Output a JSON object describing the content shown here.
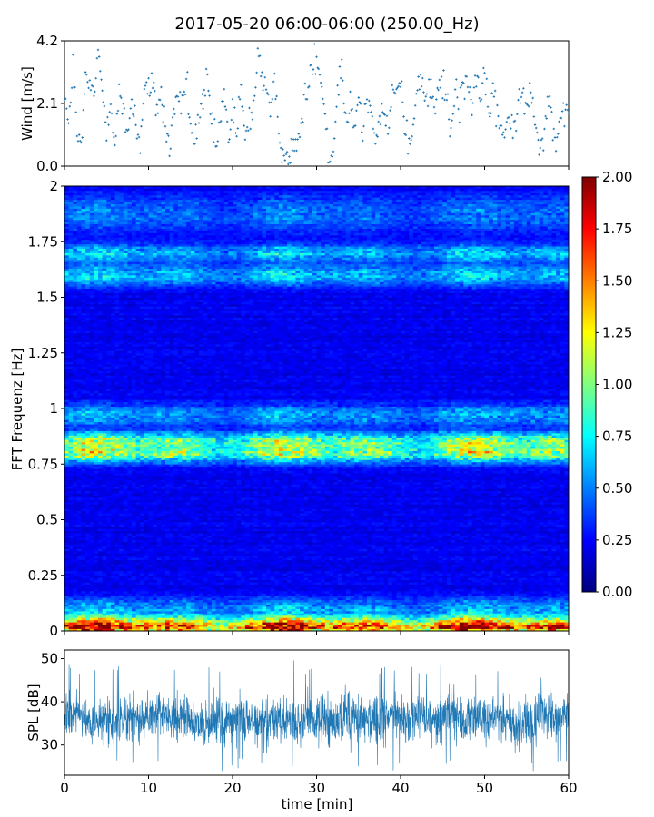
{
  "title": "2017-05-20 06:00-06:00 (250.00_Hz)",
  "chart_data": [
    {
      "type": "scatter",
      "name": "wind-panel",
      "ylabel": "Wind [m/s]",
      "xlim": [
        0,
        60
      ],
      "ylim": [
        0.0,
        4.2
      ],
      "yticks": [
        "0.0",
        "2.1",
        "4.2"
      ],
      "series_color": "#1f77b4",
      "marker": "+",
      "sample_step_min": 0.125,
      "anchors": [
        [
          0,
          2.6
        ],
        [
          0.5,
          1.1
        ],
        [
          1,
          3.6
        ],
        [
          1.5,
          0.9
        ],
        [
          2,
          0.7
        ],
        [
          2.5,
          2.7
        ],
        [
          3,
          2.8
        ],
        [
          3.5,
          2.3
        ],
        [
          4,
          3.7
        ],
        [
          4.5,
          2.6
        ],
        [
          5,
          1.3
        ],
        [
          5.5,
          2.4
        ],
        [
          6,
          0.6
        ],
        [
          6.5,
          2.5
        ],
        [
          7,
          1.7
        ],
        [
          7.5,
          1.0
        ],
        [
          8,
          2.3
        ],
        [
          8.5,
          1.4
        ],
        [
          9,
          0.8
        ],
        [
          9.5,
          2.6
        ],
        [
          10,
          2.6
        ],
        [
          10.5,
          2.5
        ],
        [
          11,
          2.0
        ],
        [
          11.5,
          2.4
        ],
        [
          12,
          1.3
        ],
        [
          12.5,
          0.6
        ],
        [
          13,
          1.8
        ],
        [
          13.5,
          2.5
        ],
        [
          14,
          1.8
        ],
        [
          14.5,
          3.1
        ],
        [
          15,
          1.2
        ],
        [
          15.5,
          0.8
        ],
        [
          16,
          1.7
        ],
        [
          16.5,
          2.0
        ],
        [
          17,
          2.8
        ],
        [
          17.5,
          1.5
        ],
        [
          18,
          0.6
        ],
        [
          18.5,
          1.4
        ],
        [
          19,
          2.4
        ],
        [
          19.5,
          0.8
        ],
        [
          20,
          2.0
        ],
        [
          20.5,
          1.2
        ],
        [
          21,
          2.4
        ],
        [
          21.5,
          0.9
        ],
        [
          22,
          1.5
        ],
        [
          22.5,
          2.1
        ],
        [
          23,
          3.8
        ],
        [
          23.5,
          3.0
        ],
        [
          24,
          2.7
        ],
        [
          24.5,
          1.6
        ],
        [
          25,
          2.6
        ],
        [
          25.5,
          1.3
        ],
        [
          26,
          0.5
        ],
        [
          26.5,
          0.3
        ],
        [
          27,
          0.4
        ],
        [
          27.5,
          0.6
        ],
        [
          28,
          1.2
        ],
        [
          28.5,
          2.0
        ],
        [
          29,
          2.7
        ],
        [
          29.5,
          3.6
        ],
        [
          30,
          3.7
        ],
        [
          30.5,
          3.1
        ],
        [
          31,
          1.8
        ],
        [
          31.5,
          0.2
        ],
        [
          32,
          0.4
        ],
        [
          32.5,
          2.8
        ],
        [
          33,
          3.2
        ],
        [
          33.5,
          1.7
        ],
        [
          34,
          2.4
        ],
        [
          34.5,
          1.2
        ],
        [
          35,
          2.5
        ],
        [
          35.5,
          1.0
        ],
        [
          36,
          2.4
        ],
        [
          36.5,
          1.6
        ],
        [
          37,
          0.8
        ],
        [
          37.5,
          1.5
        ],
        [
          38,
          2.0
        ],
        [
          38.5,
          1.1
        ],
        [
          39,
          2.6
        ],
        [
          39.5,
          2.4
        ],
        [
          40,
          2.8
        ],
        [
          40.5,
          1.3
        ],
        [
          41,
          0.9
        ],
        [
          41.5,
          1.4
        ],
        [
          42,
          2.9
        ],
        [
          42.5,
          2.7
        ],
        [
          43,
          2.4
        ],
        [
          43.5,
          2.6
        ],
        [
          44,
          1.9
        ],
        [
          44.5,
          2.6
        ],
        [
          45,
          2.7
        ],
        [
          45.5,
          2.3
        ],
        [
          46,
          1.1
        ],
        [
          46.5,
          2.5
        ],
        [
          47,
          1.8
        ],
        [
          47.5,
          3.0
        ],
        [
          48,
          2.7
        ],
        [
          48.5,
          2.0
        ],
        [
          49,
          3.2
        ],
        [
          49.5,
          2.3
        ],
        [
          50,
          2.8
        ],
        [
          50.5,
          1.6
        ],
        [
          51,
          2.6
        ],
        [
          51.5,
          1.7
        ],
        [
          52,
          1.0
        ],
        [
          52.5,
          1.3
        ],
        [
          53,
          1.8
        ],
        [
          53.5,
          1.2
        ],
        [
          54,
          2.2
        ],
        [
          54.5,
          2.7
        ],
        [
          55,
          2.1
        ],
        [
          55.5,
          2.6
        ],
        [
          56,
          1.6
        ],
        [
          56.5,
          0.8
        ],
        [
          57,
          1.0
        ],
        [
          57.5,
          2.2
        ],
        [
          58,
          1.7
        ],
        [
          58.5,
          0.8
        ],
        [
          59,
          1.2
        ],
        [
          59.5,
          1.6
        ],
        [
          60,
          1.7
        ]
      ]
    },
    {
      "type": "heatmap",
      "name": "spectrogram-panel",
      "ylabel": "FFT Frequenz [Hz]",
      "xlim": [
        0,
        60
      ],
      "ylim": [
        0,
        2
      ],
      "yticks": [
        "0",
        "0.25",
        "0.5",
        "0.75",
        "1",
        "1.25",
        "1.5",
        "1.75",
        "2"
      ],
      "colorscale": "jet",
      "colorbar": {
        "min": 0.0,
        "max": 2.0,
        "ticks": [
          "0.00",
          "0.25",
          "0.50",
          "0.75",
          "1.00",
          "1.25",
          "1.50",
          "1.75",
          "2.00"
        ]
      },
      "time_bins": 120,
      "freq_bins": 200,
      "background_level": 0.22,
      "bands": [
        {
          "freq_hz": 0.015,
          "width_hz": 0.02,
          "level": 1.75
        },
        {
          "freq_hz": 0.045,
          "width_hz": 0.025,
          "level": 0.95
        },
        {
          "freq_hz": 0.1,
          "width_hz": 0.05,
          "level": 0.45
        },
        {
          "freq_hz": 0.8,
          "width_hz": 0.04,
          "level": 0.95
        },
        {
          "freq_hz": 0.86,
          "width_hz": 0.035,
          "level": 0.8
        },
        {
          "freq_hz": 0.97,
          "width_hz": 0.05,
          "level": 0.42
        },
        {
          "freq_hz": 1.6,
          "width_hz": 0.05,
          "level": 0.48
        },
        {
          "freq_hz": 1.7,
          "width_hz": 0.04,
          "level": 0.5
        },
        {
          "freq_hz": 1.88,
          "width_hz": 0.08,
          "level": 0.33
        }
      ]
    },
    {
      "type": "line",
      "name": "spl-panel",
      "ylabel": "SPL [dB]",
      "xlabel": "time [min]",
      "xlim": [
        0,
        60
      ],
      "ylim": [
        23,
        52
      ],
      "yticks": [
        "30",
        "40",
        "50"
      ],
      "xticks": [
        "0",
        "10",
        "20",
        "30",
        "40",
        "50",
        "60"
      ],
      "series_color": "#1f77b4",
      "mean_db": 36,
      "band_db": [
        29,
        44
      ],
      "peaks_db": [
        50,
        48,
        48,
        49,
        48,
        48
      ],
      "troughs_db": [
        24,
        25,
        25
      ]
    }
  ]
}
